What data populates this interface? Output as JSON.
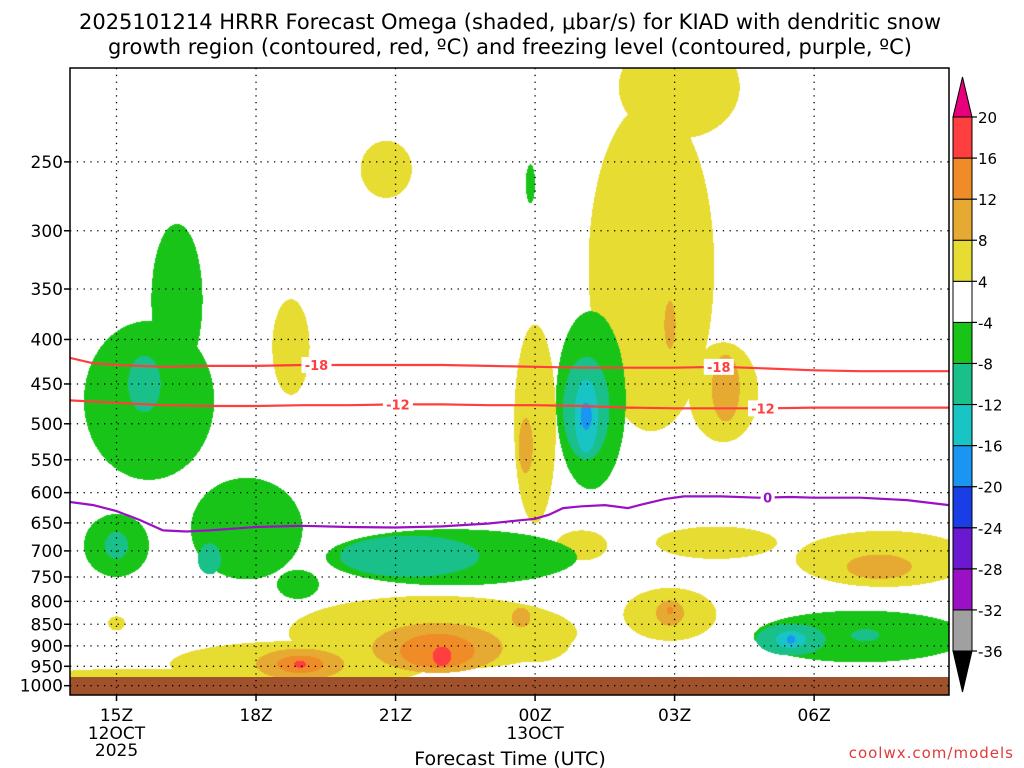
{
  "chart_data": {
    "type": "heatmap",
    "title_line1": "2025101214 HRRR Forecast Omega (shaded, μbar/s) for KIAD with dendritic snow",
    "title_line2": "growth region (contoured, red, ºC) and freezing level (contoured, purple, ºC)",
    "xlabel": "Forecast Time (UTC)",
    "credit": "coolwx.com/models",
    "x_unit": "hours since 2025-10-12 12Z",
    "xlim": [
      14.0,
      32.9
    ],
    "x_ticks": [
      {
        "x": 15,
        "label": "15Z",
        "sub1": "12OCT",
        "sub2": "2025"
      },
      {
        "x": 18,
        "label": "18Z",
        "sub1": "",
        "sub2": ""
      },
      {
        "x": 21,
        "label": "21Z",
        "sub1": "",
        "sub2": ""
      },
      {
        "x": 24,
        "label": "00Z",
        "sub1": "13OCT",
        "sub2": ""
      },
      {
        "x": 27,
        "label": "03Z",
        "sub1": "",
        "sub2": ""
      },
      {
        "x": 30,
        "label": "06Z",
        "sub1": "",
        "sub2": ""
      }
    ],
    "y_unit": "pressure (hPa), log scale",
    "ylim": [
      1025,
      195
    ],
    "y_ticks": [
      250,
      300,
      350,
      400,
      450,
      500,
      550,
      600,
      650,
      700,
      750,
      800,
      850,
      900,
      950,
      1000
    ],
    "colorbar": {
      "levels": [
        -36,
        -32,
        -28,
        -24,
        -20,
        -16,
        -12,
        -8,
        -4,
        4,
        8,
        12,
        16,
        20
      ],
      "colors": [
        "#000000",
        "#a0a0a0",
        "#9a10c4",
        "#6a19d0",
        "#1a3ee6",
        "#1a96f2",
        "#19c4c4",
        "#19c08a",
        "#19c419",
        "#ffffff",
        "#e6dc32",
        "#e6aa32",
        "#ef8c28",
        "#ff3f3f",
        "#e6007a"
      ],
      "color_stops": [
        {
          "v": -40,
          "c": "#000000"
        },
        {
          "v": -36,
          "c": "#a0a0a0"
        },
        {
          "v": -32,
          "c": "#9a10c4"
        },
        {
          "v": -28,
          "c": "#6a19d0"
        },
        {
          "v": -24,
          "c": "#1a3ee6"
        },
        {
          "v": -20,
          "c": "#1a96f2"
        },
        {
          "v": -16,
          "c": "#19c4c4"
        },
        {
          "v": -12,
          "c": "#19c08a"
        },
        {
          "v": -8,
          "c": "#19c419"
        },
        {
          "v": -4,
          "c": "#ffffff"
        },
        {
          "v": 4,
          "c": "#e6dc32"
        },
        {
          "v": 8,
          "c": "#e6aa32"
        },
        {
          "v": 12,
          "c": "#ef8c28"
        },
        {
          "v": 16,
          "c": "#ff3f3f"
        },
        {
          "v": 20,
          "c": "#e6007a"
        }
      ]
    },
    "ground_color": "#a0522d",
    "omega_features": [
      {
        "x": 15.7,
        "p": 470,
        "rx": 1.4,
        "rp": 110,
        "v": -6
      },
      {
        "x": 16.3,
        "p": 360,
        "rx": 0.55,
        "rp": 80,
        "v": -5
      },
      {
        "x": 15.6,
        "p": 450,
        "rx": 0.35,
        "rp": 35,
        "v": -9
      },
      {
        "x": 15.0,
        "p": 690,
        "rx": 0.7,
        "rp": 60,
        "v": -7
      },
      {
        "x": 15.0,
        "p": 690,
        "rx": 0.25,
        "rp": 25,
        "v": -9
      },
      {
        "x": 17.8,
        "p": 660,
        "rx": 1.2,
        "rp": 95,
        "v": -6
      },
      {
        "x": 17.0,
        "p": 715,
        "rx": 0.25,
        "rp": 30,
        "v": -8.5
      },
      {
        "x": 18.9,
        "p": 765,
        "rx": 0.45,
        "rp": 30,
        "v": -6
      },
      {
        "x": 22.2,
        "p": 712,
        "rx": 2.7,
        "rp": 55,
        "v": -6
      },
      {
        "x": 21.3,
        "p": 710,
        "rx": 1.5,
        "rp": 40,
        "v": -9
      },
      {
        "x": 25.2,
        "p": 470,
        "rx": 0.75,
        "rp": 125,
        "v": -7
      },
      {
        "x": 25.1,
        "p": 480,
        "rx": 0.5,
        "rp": 70,
        "v": -9
      },
      {
        "x": 25.1,
        "p": 490,
        "rx": 0.25,
        "rp": 50,
        "v": -14
      },
      {
        "x": 25.1,
        "p": 490,
        "rx": 0.12,
        "rp": 18,
        "v": -17
      },
      {
        "x": 23.9,
        "p": 265,
        "rx": 0.1,
        "rp": 14,
        "v": -6
      },
      {
        "x": 31.0,
        "p": 878,
        "rx": 2.3,
        "rp": 62,
        "v": -7
      },
      {
        "x": 29.5,
        "p": 885,
        "rx": 0.75,
        "rp": 38,
        "v": -9
      },
      {
        "x": 29.5,
        "p": 885,
        "rx": 0.32,
        "rp": 20,
        "v": -13
      },
      {
        "x": 29.5,
        "p": 885,
        "rx": 0.09,
        "rp": 10,
        "v": -17
      },
      {
        "x": 31.1,
        "p": 875,
        "rx": 0.3,
        "rp": 14,
        "v": -9
      },
      {
        "x": 18.95,
        "p": 945,
        "rx": 2.8,
        "rp": 60,
        "v": 6
      },
      {
        "x": 18.95,
        "p": 945,
        "rx": 0.95,
        "rp": 40,
        "v": 10
      },
      {
        "x": 18.95,
        "p": 945,
        "rx": 0.5,
        "rp": 22,
        "v": 14
      },
      {
        "x": 18.95,
        "p": 945,
        "rx": 0.13,
        "rp": 9,
        "v": 18.5
      },
      {
        "x": 21.8,
        "p": 870,
        "rx": 3.1,
        "rp": 90,
        "v": 6
      },
      {
        "x": 21.9,
        "p": 905,
        "rx": 1.4,
        "rp": 62,
        "v": 10
      },
      {
        "x": 21.9,
        "p": 912,
        "rx": 0.8,
        "rp": 42,
        "v": 13
      },
      {
        "x": 22.0,
        "p": 925,
        "rx": 0.2,
        "rp": 24,
        "v": 17
      },
      {
        "x": 15.5,
        "p": 985,
        "rx": 2.6,
        "rp": 30,
        "v": 5
      },
      {
        "x": 24.0,
        "p": 880,
        "rx": 0.8,
        "rp": 60,
        "v": 6
      },
      {
        "x": 23.7,
        "p": 835,
        "rx": 0.2,
        "rp": 22,
        "v": 9
      },
      {
        "x": 25.0,
        "p": 490,
        "rx": 0.1,
        "rp": 8,
        "v": -5
      },
      {
        "x": 24.0,
        "p": 500,
        "rx": 0.45,
        "rp": 150,
        "v": 6
      },
      {
        "x": 23.8,
        "p": 530,
        "rx": 0.15,
        "rp": 40,
        "v": 9
      },
      {
        "x": 26.5,
        "p": 330,
        "rx": 1.35,
        "rp": 180,
        "v": 6
      },
      {
        "x": 26.9,
        "p": 385,
        "rx": 0.12,
        "rp": 25,
        "v": 9
      },
      {
        "x": 27.1,
        "p": 205,
        "rx": 1.3,
        "rp": 30,
        "v": 6
      },
      {
        "x": 20.8,
        "p": 255,
        "rx": 0.55,
        "rp": 20,
        "v": 6
      },
      {
        "x": 18.75,
        "p": 408,
        "rx": 0.4,
        "rp": 55,
        "v": 5
      },
      {
        "x": 28.05,
        "p": 460,
        "rx": 0.75,
        "rp": 65,
        "v": 6
      },
      {
        "x": 28.1,
        "p": 455,
        "rx": 0.3,
        "rp": 42,
        "v": 9
      },
      {
        "x": 26.9,
        "p": 828,
        "rx": 1.0,
        "rp": 60,
        "v": 6
      },
      {
        "x": 26.9,
        "p": 825,
        "rx": 0.3,
        "rp": 28,
        "v": 9
      },
      {
        "x": 26.9,
        "p": 820,
        "rx": 0.07,
        "rp": 8,
        "v": 13
      },
      {
        "x": 27.9,
        "p": 685,
        "rx": 1.3,
        "rp": 30,
        "v": 5.5
      },
      {
        "x": 25.0,
        "p": 690,
        "rx": 0.55,
        "rp": 28,
        "v": 5
      },
      {
        "x": 31.5,
        "p": 715,
        "rx": 1.9,
        "rp": 55,
        "v": 6
      },
      {
        "x": 31.4,
        "p": 730,
        "rx": 0.7,
        "rp": 24,
        "v": 9
      },
      {
        "x": 15.0,
        "p": 848,
        "rx": 0.18,
        "rp": 16,
        "v": 5
      }
    ],
    "contours": [
      {
        "name": "isotherm -18",
        "color": "#ff3f3f",
        "label": "-18",
        "points": [
          [
            14.0,
            420
          ],
          [
            14.5,
            426
          ],
          [
            15.0,
            428
          ],
          [
            16.0,
            430
          ],
          [
            17.0,
            429
          ],
          [
            18.0,
            429
          ],
          [
            19.0,
            428
          ],
          [
            20.0,
            428
          ],
          [
            21.0,
            428
          ],
          [
            22.0,
            428
          ],
          [
            23.0,
            429
          ],
          [
            24.0,
            430
          ],
          [
            25.0,
            431
          ],
          [
            26.0,
            431
          ],
          [
            27.0,
            431
          ],
          [
            28.0,
            430
          ],
          [
            29.0,
            432
          ],
          [
            30.0,
            434
          ],
          [
            31.0,
            435
          ],
          [
            32.0,
            435
          ],
          [
            32.9,
            435
          ]
        ],
        "labels": [
          {
            "x": 19.3,
            "text": "-18"
          },
          {
            "x": 27.95,
            "text": "-18"
          }
        ]
      },
      {
        "name": "isotherm -12",
        "color": "#ff3f3f",
        "label": "-12",
        "points": [
          [
            14.0,
            470
          ],
          [
            15.0,
            473
          ],
          [
            16.0,
            476
          ],
          [
            17.0,
            477
          ],
          [
            18.0,
            477
          ],
          [
            19.0,
            476
          ],
          [
            20.0,
            476
          ],
          [
            21.0,
            475
          ],
          [
            22.0,
            475
          ],
          [
            23.0,
            476
          ],
          [
            24.0,
            476
          ],
          [
            25.0,
            477
          ],
          [
            26.0,
            479
          ],
          [
            27.0,
            480
          ],
          [
            28.0,
            480
          ],
          [
            29.0,
            480
          ],
          [
            30.0,
            479
          ],
          [
            31.0,
            479
          ],
          [
            32.0,
            479
          ],
          [
            32.9,
            479
          ]
        ],
        "labels": [
          {
            "x": 21.05,
            "text": "-12"
          },
          {
            "x": 28.9,
            "text": "-12"
          }
        ]
      },
      {
        "name": "freezing level 0",
        "color": "#9a10c4",
        "label": "0",
        "points": [
          [
            14.0,
            615
          ],
          [
            14.5,
            620
          ],
          [
            15.0,
            630
          ],
          [
            15.5,
            645
          ],
          [
            16.0,
            663
          ],
          [
            16.5,
            665
          ],
          [
            17.0,
            663
          ],
          [
            17.5,
            660
          ],
          [
            18.0,
            657
          ],
          [
            19.0,
            655
          ],
          [
            20.0,
            657
          ],
          [
            21.0,
            658
          ],
          [
            22.0,
            656
          ],
          [
            23.0,
            651
          ],
          [
            24.0,
            643
          ],
          [
            24.3,
            636
          ],
          [
            24.6,
            625
          ],
          [
            25.0,
            622
          ],
          [
            25.5,
            620
          ],
          [
            26.0,
            625
          ],
          [
            26.3,
            619
          ],
          [
            26.8,
            610
          ],
          [
            27.2,
            606
          ],
          [
            28.0,
            606
          ],
          [
            28.8,
            608
          ],
          [
            29.5,
            607
          ],
          [
            30.0,
            608
          ],
          [
            31.0,
            608
          ],
          [
            32.0,
            612
          ],
          [
            32.9,
            620
          ]
        ],
        "labels": [
          {
            "x": 29.0,
            "text": "0"
          }
        ]
      }
    ]
  }
}
